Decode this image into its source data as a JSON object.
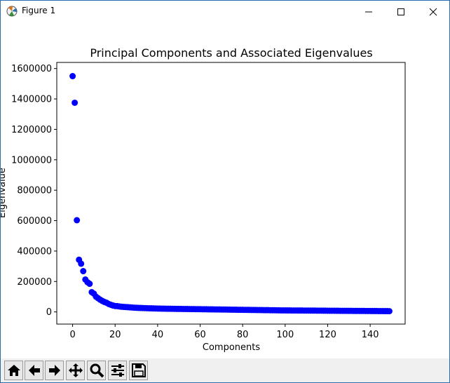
{
  "window": {
    "title": "Figure 1",
    "minimize_icon": "minimize-icon",
    "maximize_icon": "maximize-icon",
    "close_icon": "close-icon"
  },
  "toolbar": {
    "buttons": [
      {
        "name": "home-button",
        "icon": "home-icon"
      },
      {
        "name": "back-button",
        "icon": "arrow-left-icon"
      },
      {
        "name": "forward-button",
        "icon": "arrow-right-icon"
      },
      {
        "name": "pan-button",
        "icon": "move-icon"
      },
      {
        "name": "zoom-button",
        "icon": "magnifier-icon"
      },
      {
        "name": "configure-subplots-button",
        "icon": "sliders-icon"
      },
      {
        "name": "save-button",
        "icon": "floppy-icon"
      }
    ]
  },
  "chart_data": {
    "type": "scatter",
    "title": "Principal Components and Associated Eigenvalues",
    "xlabel": "Components",
    "ylabel": "Eigenvalue",
    "xlim": [
      -7.45,
      156.45
    ],
    "ylim": [
      -80000,
      1640000
    ],
    "xticks": [
      0,
      20,
      40,
      60,
      80,
      100,
      120,
      140
    ],
    "yticks": [
      0,
      200000,
      400000,
      600000,
      800000,
      1000000,
      1200000,
      1400000,
      1600000
    ],
    "color": "#0000ff",
    "grid": false,
    "x": [
      0,
      1,
      2,
      3,
      4,
      5,
      6,
      7,
      8,
      9,
      10,
      11,
      12,
      13,
      14,
      15,
      16,
      17,
      18,
      19,
      20,
      21,
      22,
      23,
      24,
      25,
      26,
      27,
      28,
      29,
      30,
      31,
      32,
      33,
      34,
      35,
      36,
      37,
      38,
      39,
      40,
      41,
      42,
      43,
      44,
      45,
      46,
      47,
      48,
      49,
      50,
      51,
      52,
      53,
      54,
      55,
      56,
      57,
      58,
      59,
      60,
      61,
      62,
      63,
      64,
      65,
      66,
      67,
      68,
      69,
      70,
      71,
      72,
      73,
      74,
      75,
      76,
      77,
      78,
      79,
      80,
      81,
      82,
      83,
      84,
      85,
      86,
      87,
      88,
      89,
      90,
      91,
      92,
      93,
      94,
      95,
      96,
      97,
      98,
      99,
      100,
      101,
      102,
      103,
      104,
      105,
      106,
      107,
      108,
      109,
      110,
      111,
      112,
      113,
      114,
      115,
      116,
      117,
      118,
      119,
      120,
      121,
      122,
      123,
      124,
      125,
      126,
      127,
      128,
      129,
      130,
      131,
      132,
      133,
      134,
      135,
      136,
      137,
      138,
      139,
      140,
      141,
      142,
      143,
      144,
      145,
      146,
      147,
      148,
      149
    ],
    "values": [
      1550000,
      1375000,
      603000,
      343000,
      317000,
      268000,
      213000,
      195000,
      185000,
      130000,
      120000,
      100000,
      90000,
      80000,
      72000,
      65000,
      60000,
      52000,
      47000,
      42000,
      39000,
      38000,
      36000,
      34000,
      33000,
      32000,
      31000,
      30000,
      29000,
      28000,
      27000,
      26500,
      26000,
      25500,
      25000,
      24500,
      24000,
      23500,
      23000,
      22500,
      22000,
      21800,
      21500,
      21200,
      21000,
      20800,
      20600,
      20400,
      20200,
      20000,
      19800,
      19600,
      19400,
      19200,
      19000,
      18800,
      18600,
      18400,
      18200,
      18000,
      17800,
      17600,
      17400,
      17200,
      17000,
      16800,
      16600,
      16400,
      16200,
      16000,
      15800,
      15600,
      15400,
      15200,
      15000,
      14800,
      14600,
      14400,
      14200,
      14000,
      13800,
      13600,
      13400,
      13200,
      13000,
      12800,
      12600,
      12400,
      12200,
      12000,
      11800,
      11600,
      11400,
      11200,
      11000,
      10800,
      10600,
      10400,
      10200,
      10000,
      9900,
      9800,
      9700,
      9600,
      9500,
      9400,
      9300,
      9200,
      9100,
      9000,
      8900,
      8800,
      8700,
      8600,
      8500,
      8400,
      8300,
      8200,
      8100,
      8000,
      7900,
      7800,
      7700,
      7600,
      7500,
      7400,
      7300,
      7200,
      7100,
      7000,
      6900,
      6800,
      6700,
      6600,
      6500,
      6400,
      6300,
      6200,
      6100,
      6000,
      5900,
      5800,
      5700,
      5600,
      5500,
      5400,
      5300,
      5200,
      5100,
      5000
    ]
  }
}
